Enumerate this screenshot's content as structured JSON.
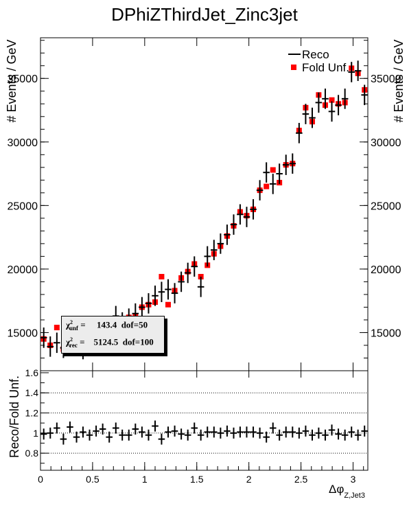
{
  "chart_data": [
    {
      "type": "scatter",
      "title": "DPhiZThirdJet_Zinc3jet",
      "ylabel": "# Events / GeV",
      "xlim": [
        0,
        3.1416
      ],
      "ylim": [
        12000,
        38200
      ],
      "y_ticks": [
        15000,
        20000,
        25000,
        30000,
        35000
      ],
      "legend_position": "top-right",
      "legend": [
        {
          "name": "Reco",
          "marker": "cross",
          "color": "#000000"
        },
        {
          "name": "Fold Unf.",
          "marker": "square",
          "color": "#ff0000"
        }
      ],
      "x": [
        0.031,
        0.094,
        0.157,
        0.22,
        0.283,
        0.346,
        0.408,
        0.471,
        0.534,
        0.597,
        0.66,
        0.723,
        0.785,
        0.848,
        0.911,
        0.974,
        1.037,
        1.1,
        1.162,
        1.225,
        1.288,
        1.351,
        1.414,
        1.477,
        1.539,
        1.602,
        1.665,
        1.728,
        1.791,
        1.854,
        1.916,
        1.979,
        2.042,
        2.105,
        2.168,
        2.231,
        2.293,
        2.356,
        2.419,
        2.482,
        2.545,
        2.608,
        2.67,
        2.733,
        2.796,
        2.859,
        2.922,
        2.985,
        3.047,
        3.11
      ],
      "series": [
        {
          "name": "Reco",
          "values": [
            14600,
            13900,
            14200,
            13800,
            14500,
            14200,
            13700,
            14100,
            14500,
            14800,
            15200,
            16300,
            15800,
            16100,
            16500,
            17000,
            17300,
            17900,
            18200,
            18400,
            18100,
            19000,
            19700,
            20200,
            18600,
            21000,
            21500,
            22000,
            22700,
            23500,
            24300,
            24100,
            24700,
            26200,
            27600,
            26700,
            27500,
            28200,
            28300,
            30700,
            32200,
            31900,
            33100,
            33400,
            32400,
            32900,
            33400,
            35500,
            35600,
            33700
          ],
          "errors": [
            800,
            800,
            800,
            800,
            800,
            800,
            800,
            800,
            800,
            800,
            800,
            800,
            800,
            800,
            800,
            800,
            800,
            800,
            800,
            800,
            800,
            800,
            800,
            800,
            800,
            800,
            800,
            800,
            800,
            800,
            800,
            800,
            800,
            800,
            800,
            800,
            800,
            800,
            800,
            800,
            800,
            800,
            800,
            800,
            800,
            800,
            800,
            800,
            800,
            800
          ]
        },
        {
          "name": "Fold Unf.",
          "values": [
            14500,
            14000,
            15400,
            13700,
            14700,
            14200,
            14000,
            13900,
            14400,
            15000,
            15300,
            16000,
            15900,
            16200,
            16300,
            17000,
            17200,
            17400,
            19400,
            17200,
            18300,
            19300,
            19800,
            20400,
            19400,
            20300,
            21200,
            21800,
            22600,
            23400,
            24500,
            24200,
            24700,
            26200,
            26500,
            27800,
            26800,
            28200,
            28300,
            30900,
            32700,
            31600,
            33700,
            32900,
            33300,
            33000,
            33100,
            35800,
            35400,
            34100
          ]
        }
      ],
      "stats": {
        "unf_label": "unf",
        "unf_text": "=     143.4  dof=50",
        "rec_label": "rec",
        "rec_text": "=    5124.5  dof=100"
      }
    },
    {
      "type": "scatter",
      "ylabel": "Reco/Fold Unf.",
      "xlabel": "Δφ",
      "xlabel_subscript": "Z,Jet3",
      "xlim": [
        0,
        3.1416
      ],
      "ylim": [
        0.63,
        1.62
      ],
      "y_ticks": [
        0.8,
        1,
        1.2,
        1.4,
        1.6
      ],
      "x_ticks": [
        0,
        0.5,
        1,
        1.5,
        2,
        2.5,
        3
      ],
      "reference_lines": [
        1.0,
        1.2,
        1.4,
        0.8
      ],
      "ratio_values": [
        0.99,
        1.0,
        1.05,
        0.94,
        1.06,
        0.96,
        1.01,
        0.98,
        1.02,
        1.04,
        0.96,
        1.05,
        0.98,
        0.98,
        1.04,
        1.01,
        0.98,
        1.07,
        0.94,
        1.01,
        1.02,
        0.99,
        0.98,
        1.05,
        0.98,
        1.01,
        1.01,
        1.0,
        1.02,
        1.0,
        1.01,
        1.01,
        1.01,
        1.0,
        0.96,
        1.05,
        0.98,
        1.01,
        1.01,
        1.0,
        1.02,
        0.98,
        1.0,
        0.98,
        1.03,
        0.99,
        0.98,
        1.01,
        0.98,
        1.02
      ]
    }
  ]
}
